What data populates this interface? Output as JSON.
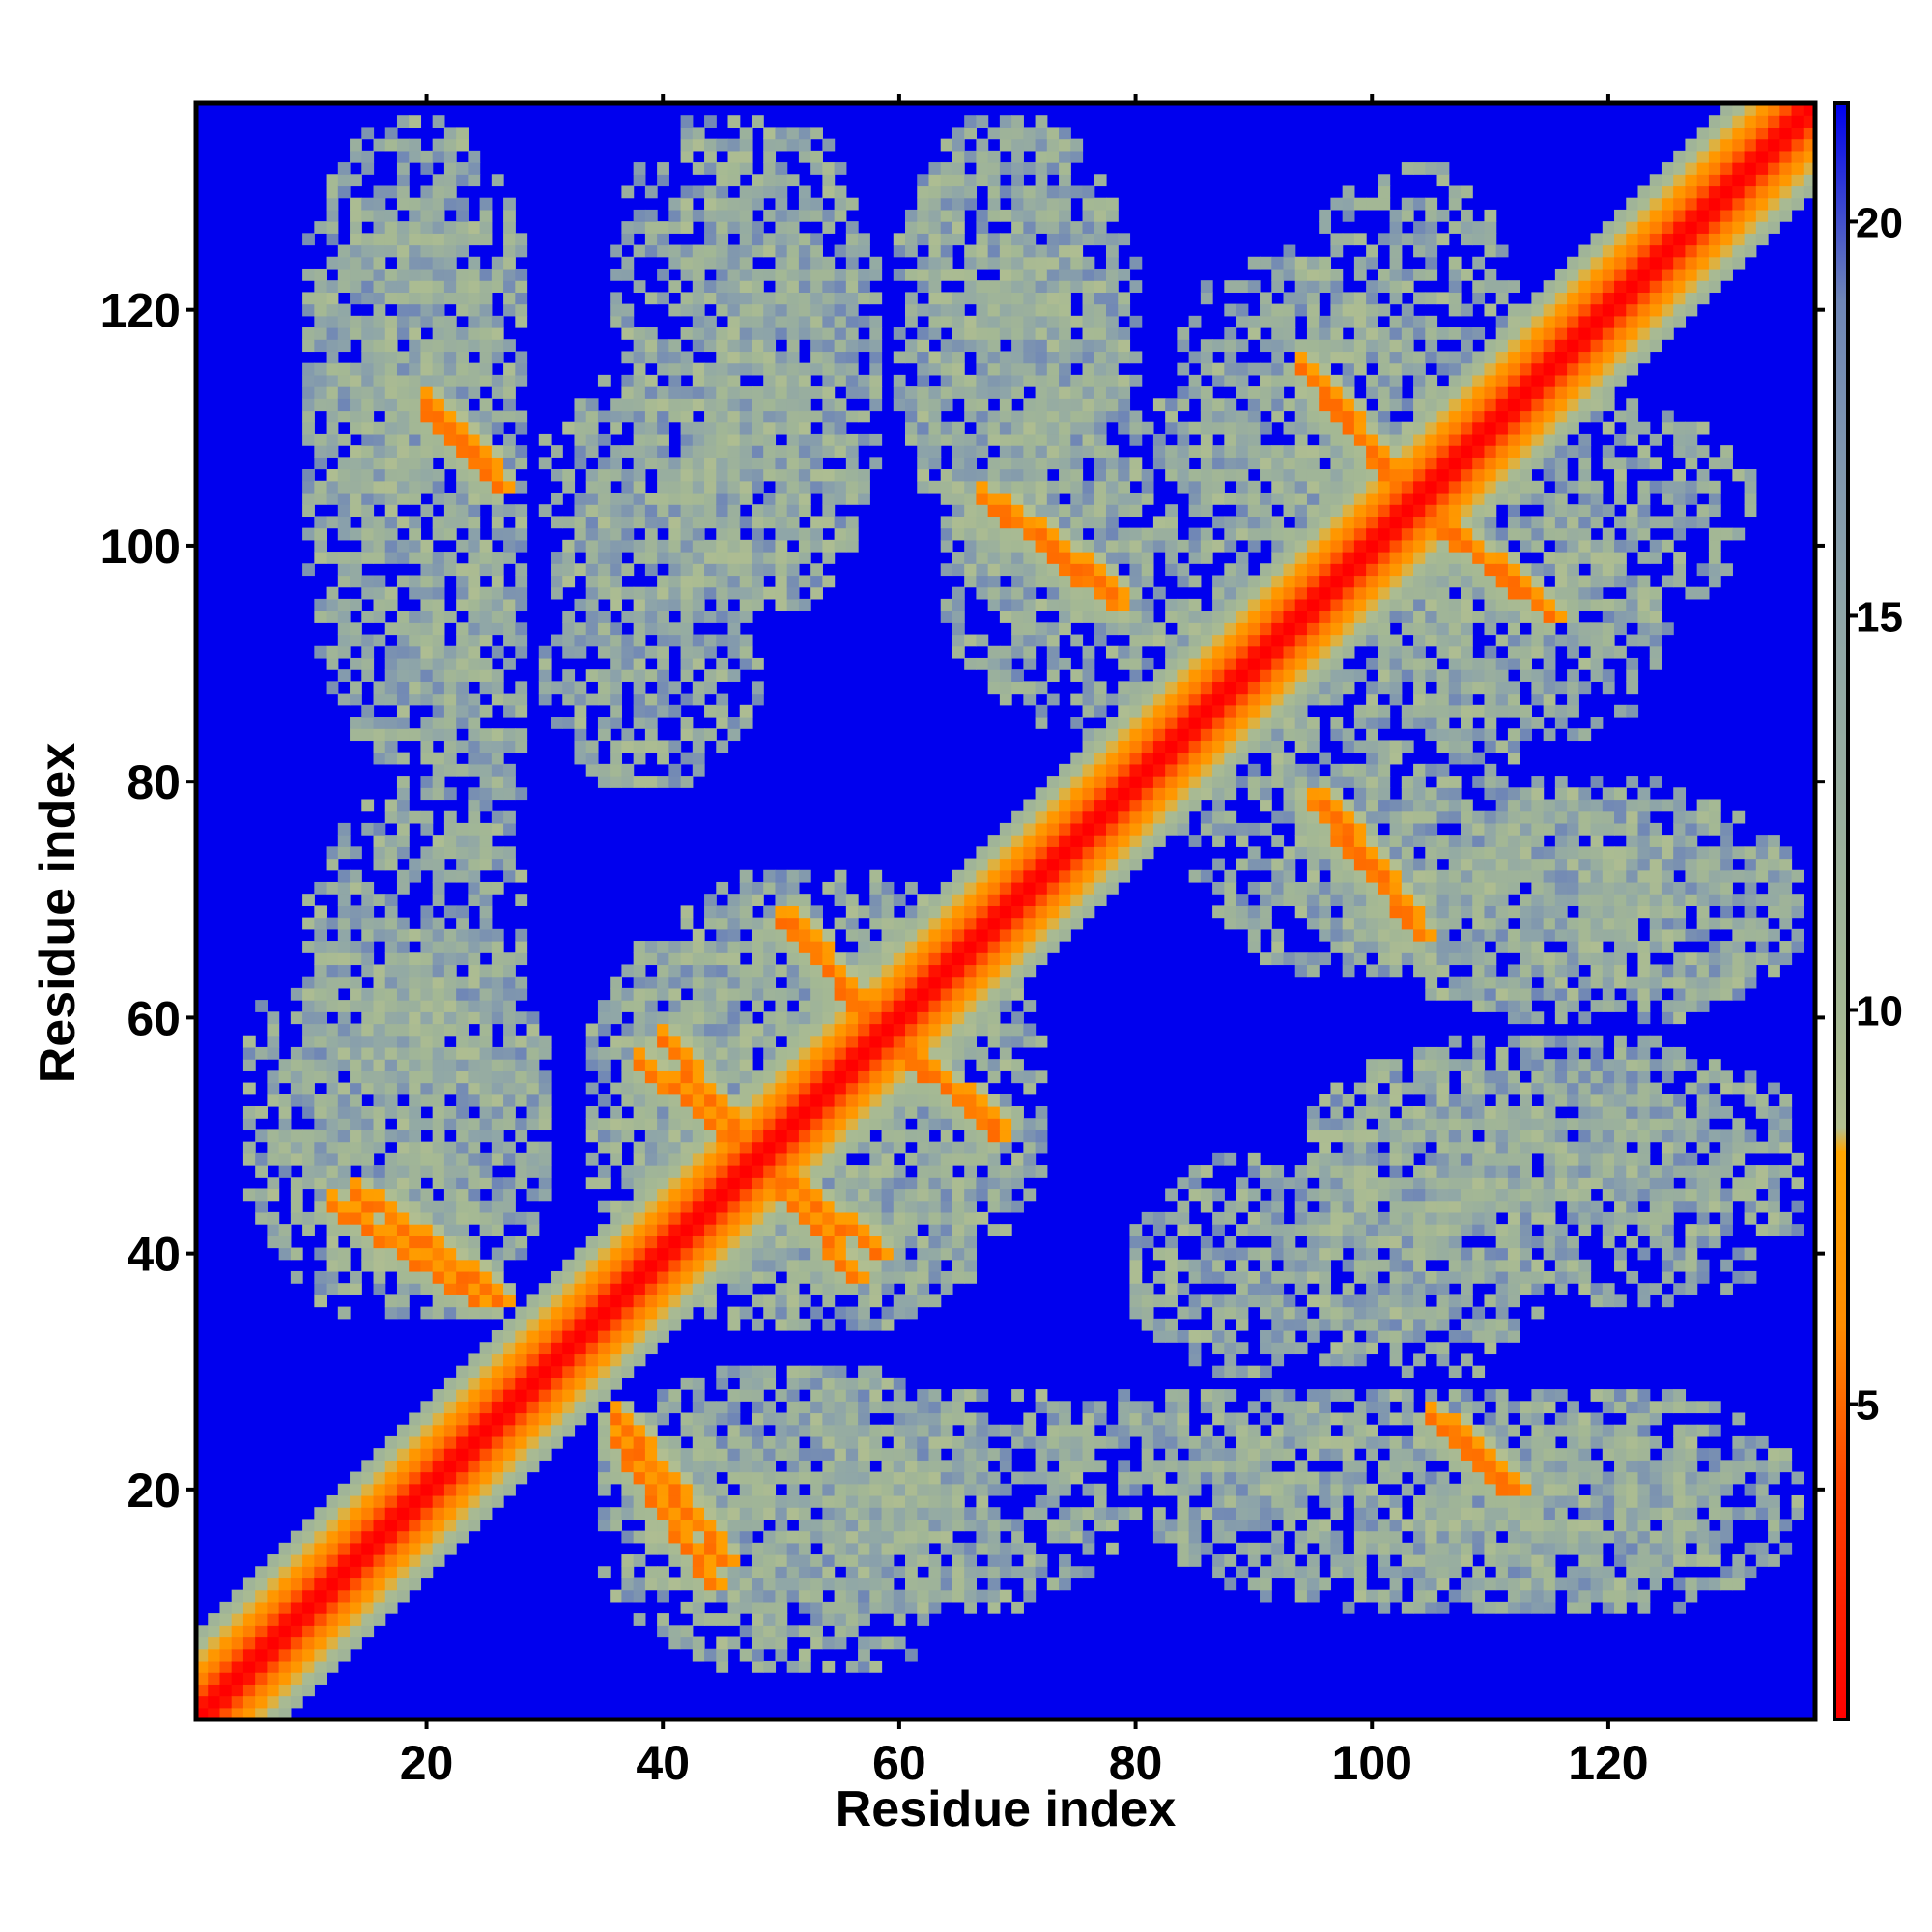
{
  "chart_data": {
    "type": "heatmap",
    "title": "",
    "xlabel": "Residue index",
    "ylabel": "Residue index",
    "n_residues": 137,
    "xlim": [
      1,
      137
    ],
    "ylim": [
      1,
      137
    ],
    "x_ticks": [
      20,
      40,
      60,
      80,
      100,
      120
    ],
    "y_ticks": [
      20,
      40,
      60,
      80,
      100,
      120
    ],
    "colorbar": {
      "ticks": [
        5,
        10,
        15,
        20
      ],
      "range": [
        1,
        21.5
      ],
      "colors": [
        {
          "value": 1,
          "color": "#ff0000"
        },
        {
          "value": 4,
          "color": "#ff4400"
        },
        {
          "value": 6,
          "color": "#ff8c00"
        },
        {
          "value": 8.2,
          "color": "#ffa500"
        },
        {
          "value": 8.5,
          "color": "#b4c090"
        },
        {
          "value": 10,
          "color": "#a4b894"
        },
        {
          "value": 15,
          "color": "#8fa6a8"
        },
        {
          "value": 19,
          "color": "#6f86b6"
        },
        {
          "value": 21.5,
          "color": "#0000ee"
        }
      ]
    },
    "background_color": "#0000ee",
    "diagonal_band": {
      "core_width": 1.2,
      "halo_width": 7,
      "value_at_diagonal": 1,
      "value_at_halo": 11
    },
    "contact_strands": [
      {
        "from": [
          14,
          45
        ],
        "to": [
          26,
          36
        ],
        "value": 5
      },
      {
        "from": [
          36,
          24
        ],
        "to": [
          44,
          12
        ],
        "value": 5
      },
      {
        "from": [
          40,
          58
        ],
        "to": [
          56,
          38
        ],
        "value": 5
      },
      {
        "from": [
          51,
          68
        ],
        "to": [
          59,
          58
        ],
        "value": 5
      },
      {
        "from": [
          57,
          60
        ],
        "to": [
          68,
          50
        ],
        "value": 5
      },
      {
        "from": [
          20,
          112
        ],
        "to": [
          26,
          105
        ],
        "value": 5
      },
      {
        "from": [
          67,
          104
        ],
        "to": [
          78,
          95
        ],
        "value": 5
      },
      {
        "from": [
          96,
          112
        ],
        "to": [
          104,
          103
        ],
        "value": 5
      },
      {
        "from": [
          106,
          102
        ],
        "to": [
          115,
          94
        ],
        "value": 5
      },
      {
        "from": [
          96,
          78
        ],
        "to": [
          103,
          69
        ],
        "value": 5
      },
      {
        "from": [
          107,
          25
        ],
        "to": [
          111,
          20
        ],
        "value": 5
      }
    ],
    "contact_regions": [
      {
        "x": [
          10,
          28
        ],
        "y": [
          100,
          136
        ],
        "value": 12
      },
      {
        "x": [
          36,
          56
        ],
        "y": [
          105,
          136
        ],
        "value": 12
      },
      {
        "x": [
          60,
          78
        ],
        "y": [
          100,
          136
        ],
        "value": 12
      },
      {
        "x": [
          94,
          112
        ],
        "y": [
          98,
          132
        ],
        "value": 12
      },
      {
        "x": [
          5,
          30
        ],
        "y": [
          35,
          68
        ],
        "value": 12
      },
      {
        "x": [
          34,
          72
        ],
        "y": [
          35,
          70
        ],
        "value": 12
      },
      {
        "x": [
          36,
          65
        ],
        "y": [
          8,
          30
        ],
        "value": 12
      },
      {
        "x": [
          95,
          135
        ],
        "y": [
          62,
          80
        ],
        "value": 12
      },
      {
        "x": [
          95,
          135
        ],
        "y": [
          42,
          58
        ],
        "value": 12
      },
      {
        "x": [
          82,
          130
        ],
        "y": [
          10,
          28
        ],
        "value": 12
      },
      {
        "x": [
          56,
          78
        ],
        "y": [
          10,
          28
        ],
        "value": 12
      },
      {
        "x": [
          95,
          115
        ],
        "y": [
          30,
          56
        ],
        "value": 12
      },
      {
        "x": [
          18,
          28
        ],
        "y": [
          72,
          100
        ],
        "value": 12
      },
      {
        "x": [
          30,
          48
        ],
        "y": [
          80,
          105
        ],
        "value": 12
      },
      {
        "x": [
          64,
          96
        ],
        "y": [
          84,
          112
        ],
        "value": 12
      },
      {
        "x": [
          100,
          125
        ],
        "y": [
          84,
          100
        ],
        "value": 12
      }
    ]
  }
}
